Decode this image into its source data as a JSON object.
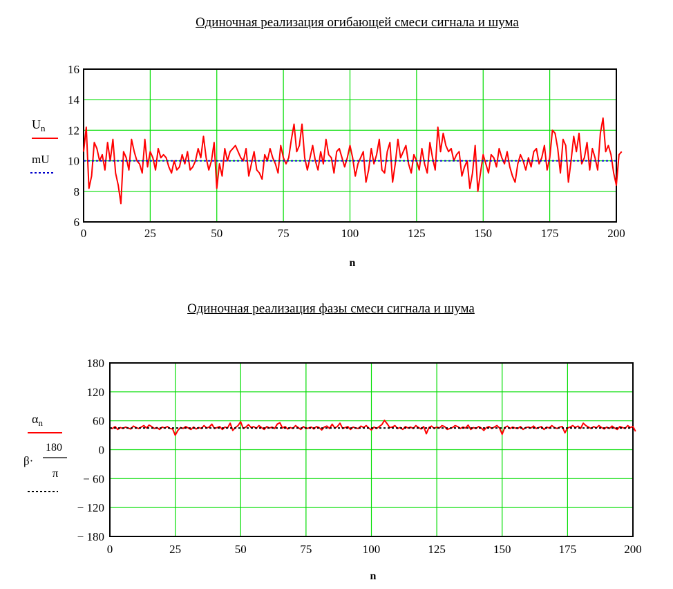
{
  "chart_data": [
    {
      "type": "line",
      "title": "Одиночная реализация огибающей смеси сигнала и шума",
      "xlabel": "n",
      "xlim": [
        0,
        200
      ],
      "ylim": [
        6,
        16
      ],
      "x_ticks": [
        "0",
        "25",
        "50",
        "75",
        "100",
        "125",
        "150",
        "175",
        "200"
      ],
      "y_ticks": [
        "6",
        "8",
        "10",
        "12",
        "14",
        "16"
      ],
      "grid": true,
      "legend": [
        {
          "label": "U",
          "subscript": "n",
          "color": "#ff0000",
          "style": "solid"
        },
        {
          "label": "mU",
          "subscript": "",
          "color": "#0000cc",
          "style": "dotted"
        }
      ],
      "series": [
        {
          "name": "Un",
          "color": "#ff0000",
          "x_start": 0,
          "x_step": 1,
          "values": [
            10.6,
            12.2,
            8.2,
            9.0,
            11.2,
            10.8,
            10.0,
            10.4,
            9.4,
            11.2,
            10.0,
            11.4,
            9.2,
            8.4,
            7.2,
            10.6,
            10.2,
            9.4,
            11.4,
            10.6,
            10.0,
            9.8,
            9.2,
            11.4,
            9.6,
            10.6,
            10.2,
            9.4,
            10.8,
            10.2,
            10.4,
            10.2,
            9.6,
            9.2,
            10.0,
            9.4,
            9.6,
            10.4,
            9.8,
            10.6,
            9.4,
            9.6,
            10.0,
            10.8,
            10.2,
            11.6,
            10.2,
            9.4,
            10.0,
            11.2,
            8.2,
            9.8,
            9.0,
            10.8,
            10.0,
            10.6,
            10.8,
            11.0,
            10.6,
            10.2,
            10.0,
            10.8,
            9.0,
            9.8,
            10.6,
            9.4,
            9.2,
            8.8,
            10.4,
            10.0,
            10.8,
            10.2,
            9.8,
            9.2,
            11.0,
            10.2,
            9.8,
            10.2,
            11.4,
            12.4,
            10.6,
            11.0,
            12.4,
            10.2,
            9.4,
            10.2,
            11.0,
            10.0,
            9.4,
            10.6,
            9.8,
            11.4,
            10.4,
            10.2,
            9.2,
            10.6,
            10.8,
            10.2,
            9.6,
            10.2,
            11.0,
            10.2,
            9.0,
            9.8,
            10.2,
            10.6,
            8.6,
            9.4,
            10.8,
            9.8,
            10.4,
            11.4,
            9.4,
            9.2,
            10.6,
            11.2,
            8.6,
            9.8,
            11.4,
            10.2,
            10.6,
            11.0,
            9.8,
            9.2,
            10.4,
            10.0,
            9.4,
            10.8,
            9.8,
            9.2,
            11.2,
            10.2,
            9.4,
            12.2,
            10.6,
            11.8,
            11.0,
            10.6,
            10.8,
            10.0,
            10.4,
            10.6,
            9.0,
            9.6,
            10.0,
            8.2,
            9.2,
            11.0,
            8.0,
            9.2,
            10.4,
            9.8,
            9.2,
            10.4,
            10.2,
            9.6,
            10.8,
            10.2,
            9.8,
            10.6,
            9.6,
            9.0,
            8.6,
            9.8,
            10.4,
            10.0,
            9.4,
            10.2,
            9.6,
            10.6,
            10.8,
            9.8,
            10.2,
            11.0,
            9.4,
            10.2,
            12.0,
            11.8,
            10.8,
            9.2,
            11.4,
            11.0,
            8.6,
            10.0,
            11.6,
            10.6,
            11.8,
            9.8,
            10.2,
            11.2,
            9.4,
            10.8,
            10.2,
            9.4,
            11.8,
            12.8,
            10.6,
            11.0,
            10.4,
            9.2,
            8.4,
            10.4,
            10.6
          ]
        },
        {
          "name": "mU",
          "color": "#0000cc",
          "x_start": 0,
          "x_step": 1,
          "constant": 10
        }
      ]
    },
    {
      "type": "line",
      "title": "Одиночная реализация фазы  смеси сигнала и шума",
      "xlabel": "n",
      "xlim": [
        0,
        200
      ],
      "ylim": [
        -180,
        180
      ],
      "x_ticks": [
        "0",
        "25",
        "50",
        "75",
        "100",
        "125",
        "150",
        "175",
        "200"
      ],
      "y_ticks": [
        "180",
        "120",
        "60",
        "0",
        "− 60",
        "− 120",
        "− 180"
      ],
      "grid": true,
      "legend": [
        {
          "label": "α",
          "subscript": "n",
          "color": "#ff0000",
          "style": "solid"
        },
        {
          "label": "β·",
          "fraction_num": "180",
          "fraction_den": "π",
          "color": "#000000",
          "style": "dotted"
        }
      ],
      "series": [
        {
          "name": "αn",
          "color": "#ff0000",
          "x_start": 0,
          "x_step": 1,
          "values": [
            45,
            44,
            48,
            42,
            46,
            44,
            47,
            45,
            43,
            49,
            46,
            44,
            47,
            50,
            45,
            51,
            48,
            44,
            46,
            42,
            47,
            45,
            48,
            44,
            43,
            30,
            40,
            46,
            44,
            48,
            45,
            42,
            47,
            43,
            46,
            44,
            50,
            45,
            47,
            53,
            44,
            46,
            48,
            42,
            47,
            45,
            55,
            40,
            46,
            50,
            58,
            44,
            47,
            52,
            46,
            48,
            44,
            50,
            46,
            42,
            48,
            45,
            47,
            44,
            53,
            56,
            45,
            48,
            43,
            46,
            44,
            50,
            46,
            42,
            48,
            44,
            45,
            47,
            43,
            48,
            46,
            41,
            47,
            49,
            44,
            53,
            45,
            48,
            55,
            44,
            46,
            48,
            42,
            47,
            45,
            44,
            49,
            46,
            50,
            45,
            41,
            47,
            44,
            48,
            52,
            61,
            54,
            46,
            47,
            50,
            44,
            46,
            42,
            48,
            45,
            47,
            44,
            50,
            46,
            43,
            48,
            33,
            46,
            49,
            44,
            47,
            45,
            50,
            48,
            42,
            44,
            46,
            50,
            48,
            44,
            47,
            45,
            51,
            42,
            46,
            44,
            48,
            45,
            40,
            46,
            48,
            44,
            47,
            50,
            45,
            32,
            46,
            49,
            44,
            47,
            45,
            44,
            48,
            42,
            46,
            47,
            45,
            49,
            44,
            46,
            48,
            42,
            47,
            45,
            50,
            46,
            44,
            47,
            48,
            35,
            45,
            47,
            50,
            46,
            49,
            44,
            55,
            50,
            47,
            44,
            48,
            45,
            50,
            46,
            43,
            47,
            44,
            49,
            45,
            42,
            48,
            46,
            44,
            50,
            46,
            48,
            38
          ]
        },
        {
          "name": "β·180/π",
          "color": "#000000",
          "x_start": 0,
          "x_step": 1,
          "constant": 45
        }
      ]
    }
  ]
}
